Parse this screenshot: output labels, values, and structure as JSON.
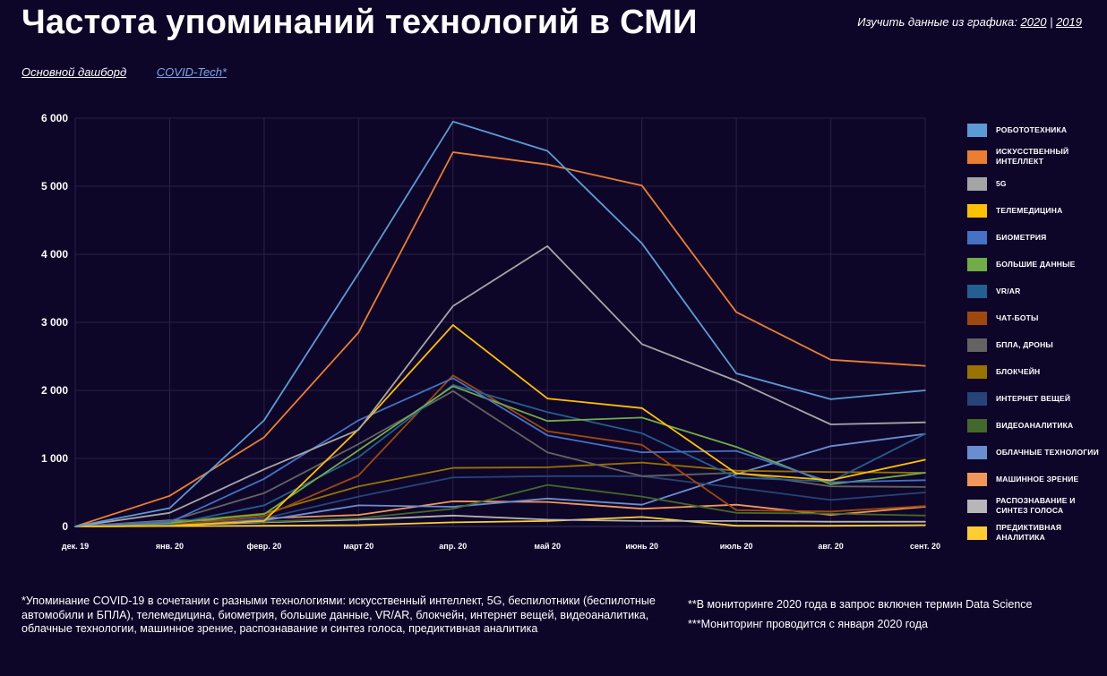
{
  "page": {
    "title": "Частота упоминаний технологий в СМИ",
    "explore_label": "Изучить данные из графика:",
    "explore_links": [
      "2020",
      "2019"
    ],
    "explore_separator": "|",
    "nav": {
      "main": "Основной дашборд",
      "covid": "COVID-Tech*"
    },
    "footnote": "*Упоминание COVID-19 в сочетании с разными технологиями: искусственный интеллект, 5G, беспилотники (беспилотные автомобили и БПЛА), телемедицина, биометрия, большие данные, VR/AR, блокчейн, интернет вещей, видеоаналитика, облачные технологии, машинное зрение, распознавание и синтез голоса, предиктивная аналитика",
    "note_1": "**В мониторинге 2020 года в запрос включен термин Data Science",
    "note_2": "***Мониторинг проводится с января 2020 года"
  },
  "chart_data": {
    "type": "line",
    "title": "Частота упоминаний технологий в СМИ",
    "xlabel": "",
    "ylabel": "",
    "ylim": [
      0,
      6000
    ],
    "yticks": [
      0,
      1000,
      2000,
      3000,
      4000,
      5000,
      6000
    ],
    "ytick_labels": [
      "0",
      "1 000",
      "2 000",
      "3 000",
      "4 000",
      "5 000",
      "6 000"
    ],
    "categories": [
      "дек. 19",
      "янв. 20",
      "февр. 20",
      "март 20",
      "апр. 20",
      "май 20",
      "июнь 20",
      "июль 20",
      "авг. 20",
      "сент. 20"
    ],
    "grid": true,
    "legend_position": "right",
    "series": [
      {
        "name": "Робототехника",
        "color": "#5b9bd5",
        "values": [
          0,
          270,
          1560,
          3720,
          5950,
          5520,
          4160,
          2250,
          1870,
          2000
        ]
      },
      {
        "name": "Искусственный интеллект",
        "color": "#ed7d31",
        "values": [
          0,
          450,
          1310,
          2850,
          5500,
          5320,
          5010,
          3150,
          2450,
          2360
        ]
      },
      {
        "name": "5G",
        "color": "#a5a5a5",
        "values": [
          0,
          200,
          840,
          1420,
          3240,
          4120,
          2680,
          2140,
          1500,
          1530
        ]
      },
      {
        "name": "Телемедицина",
        "color": "#ffc000",
        "values": [
          0,
          10,
          80,
          1430,
          2960,
          1880,
          1740,
          780,
          680,
          980
        ]
      },
      {
        "name": "Биометрия",
        "color": "#4472c4",
        "values": [
          0,
          60,
          700,
          1560,
          2180,
          1340,
          1090,
          1110,
          650,
          680
        ]
      },
      {
        "name": "Большие данные",
        "color": "#70ad47",
        "values": [
          0,
          50,
          180,
          1120,
          2060,
          1550,
          1600,
          1170,
          620,
          790
        ]
      },
      {
        "name": "VR/AR",
        "color": "#255e91",
        "values": [
          0,
          30,
          310,
          1020,
          2080,
          1680,
          1370,
          720,
          660,
          1360
        ]
      },
      {
        "name": "Чат-боты",
        "color": "#9e480e",
        "values": [
          0,
          20,
          150,
          750,
          2220,
          1400,
          1200,
          240,
          220,
          300
        ]
      },
      {
        "name": "БПЛА, дроны",
        "color": "#636363",
        "values": [
          0,
          80,
          490,
          1210,
          1990,
          1090,
          740,
          790,
          590,
          580
        ]
      },
      {
        "name": "Блокчейн",
        "color": "#997300",
        "values": [
          0,
          60,
          190,
          590,
          860,
          870,
          940,
          820,
          800,
          790
        ]
      },
      {
        "name": "Интернет вещей",
        "color": "#264478",
        "values": [
          0,
          30,
          120,
          440,
          720,
          740,
          740,
          570,
          390,
          500
        ]
      },
      {
        "name": "Видеоаналитика",
        "color": "#43682b",
        "values": [
          0,
          30,
          70,
          120,
          260,
          610,
          440,
          200,
          190,
          160
        ]
      },
      {
        "name": "Облачные технологии",
        "color": "#698ed0",
        "values": [
          0,
          90,
          90,
          310,
          290,
          410,
          320,
          770,
          1180,
          1360
        ]
      },
      {
        "name": "Машинное зрение",
        "color": "#f1975a",
        "values": [
          0,
          10,
          120,
          170,
          370,
          360,
          260,
          320,
          170,
          290
        ]
      },
      {
        "name": "Распознавание и синтез голоса",
        "color": "#b7b7b7",
        "values": [
          0,
          20,
          60,
          100,
          160,
          100,
          80,
          80,
          70,
          70
        ]
      },
      {
        "name": "Предиктивная аналитика",
        "color": "#ffcd33",
        "values": [
          0,
          5,
          10,
          20,
          60,
          80,
          140,
          10,
          10,
          20
        ]
      }
    ]
  }
}
